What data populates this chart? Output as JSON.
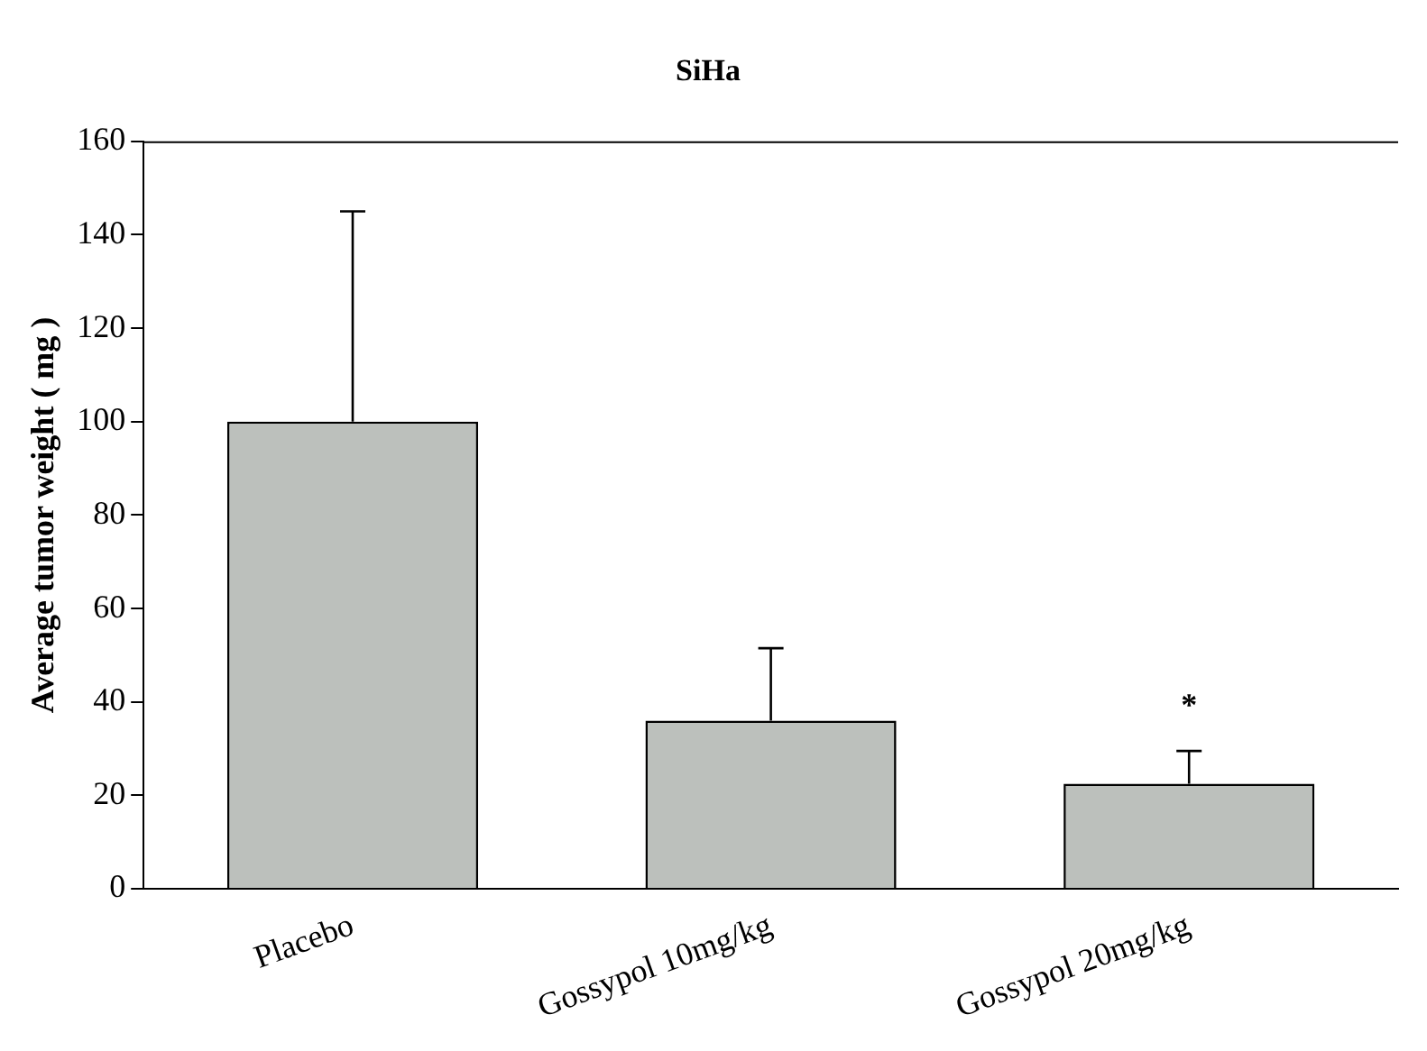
{
  "chart_data": {
    "type": "bar",
    "title": "SiHa",
    "ylabel": "Average tumor weight ( mg )",
    "categories": [
      "Placebo",
      "Gossypol 10mg/kg",
      "Gossypol 20mg/kg"
    ],
    "values": [
      100,
      36,
      22.5
    ],
    "color": "#bcc0bc",
    "errors": [
      [
        100,
        145
      ],
      [
        36,
        51.5
      ],
      [
        22.5,
        29.5
      ]
    ],
    "ylim": [
      0,
      160
    ],
    "yticks": [
      0,
      20,
      40,
      60,
      80,
      100,
      120,
      140,
      160
    ],
    "grid": false,
    "legend": false,
    "annotations": [
      "*"
    ]
  }
}
